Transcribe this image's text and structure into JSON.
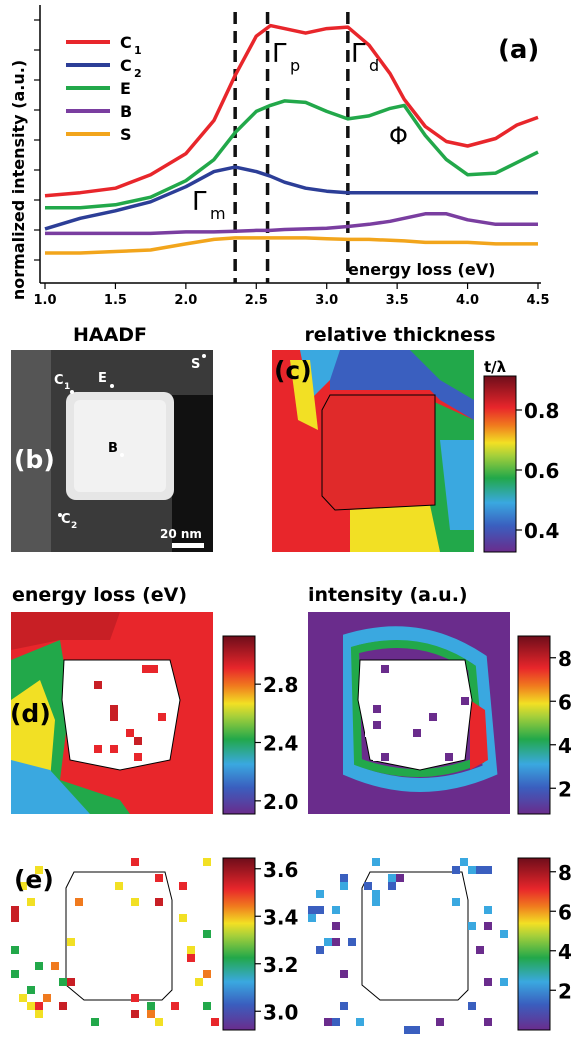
{
  "panel_a": {
    "label": "(a)",
    "ylabel": "normalized intensity (a.u.)",
    "xlabel": "energy loss (eV)",
    "xticks": [
      "1.0",
      "1.5",
      "2.0",
      "2.5",
      "3.0",
      "3.5",
      "4.0",
      "4.5"
    ],
    "legend": [
      {
        "key": "C",
        "sub": "1",
        "color": "#e8262b"
      },
      {
        "key": "C",
        "sub": "2",
        "color": "#2c3e97"
      },
      {
        "key": "E",
        "sub": "",
        "color": "#22a84a"
      },
      {
        "key": "B",
        "sub": "",
        "color": "#7a3ea0"
      },
      {
        "key": "S",
        "sub": "",
        "color": "#f2a51c"
      }
    ],
    "peaks": [
      {
        "label": "Γ",
        "sub": "m"
      },
      {
        "label": "Γ",
        "sub": "p"
      },
      {
        "label": "Γ",
        "sub": "d"
      },
      {
        "label": "Φ",
        "sub": ""
      }
    ]
  },
  "chart_data": {
    "type": "line",
    "x": [
      1.0,
      1.25,
      1.5,
      1.75,
      2.0,
      2.2,
      2.35,
      2.5,
      2.6,
      2.7,
      2.85,
      3.0,
      3.15,
      3.3,
      3.45,
      3.55,
      3.7,
      3.85,
      4.0,
      4.2,
      4.35,
      4.5
    ],
    "xlim": [
      1.0,
      4.5
    ],
    "xlabel": "energy loss (eV)",
    "ylabel": "normalized intensity (a.u.)",
    "series": [
      {
        "name": "C1",
        "color": "#e8262b",
        "values": [
          1.9,
          2.0,
          2.15,
          2.6,
          3.3,
          4.4,
          5.9,
          7.2,
          7.55,
          7.45,
          7.3,
          7.45,
          7.5,
          6.9,
          5.95,
          5.1,
          4.2,
          3.7,
          3.55,
          3.8,
          4.25,
          4.5
        ]
      },
      {
        "name": "C2",
        "color": "#2c3e97",
        "values": [
          0.8,
          1.15,
          1.4,
          1.7,
          2.2,
          2.7,
          2.85,
          2.7,
          2.55,
          2.35,
          2.15,
          2.05,
          2.0,
          2.0,
          2.0,
          2.0,
          2.0,
          2.0,
          2.0,
          2.0,
          2.0,
          2.0
        ]
      },
      {
        "name": "E",
        "color": "#22a84a",
        "values": [
          1.5,
          1.5,
          1.6,
          1.85,
          2.4,
          3.1,
          4.0,
          4.7,
          4.9,
          5.05,
          5.0,
          4.7,
          4.45,
          4.55,
          4.8,
          4.9,
          3.9,
          3.1,
          2.6,
          2.65,
          3.0,
          3.35
        ]
      },
      {
        "name": "B",
        "color": "#7a3ea0",
        "values": [
          0.65,
          0.65,
          0.65,
          0.65,
          0.7,
          0.7,
          0.72,
          0.75,
          0.75,
          0.78,
          0.8,
          0.82,
          0.88,
          0.95,
          1.05,
          1.15,
          1.3,
          1.3,
          1.1,
          0.95,
          0.95,
          0.95
        ]
      },
      {
        "name": "S",
        "color": "#f2a51c",
        "values": [
          0.0,
          0.0,
          0.05,
          0.1,
          0.3,
          0.45,
          0.5,
          0.5,
          0.5,
          0.5,
          0.5,
          0.47,
          0.45,
          0.45,
          0.42,
          0.4,
          0.35,
          0.35,
          0.35,
          0.3,
          0.3,
          0.3
        ]
      }
    ],
    "vlines": [
      2.35,
      2.58,
      3.15
    ],
    "ylim": [
      -0.3,
      8.0
    ]
  },
  "panel_b": {
    "title": "HAADF",
    "label": "(b)",
    "points": [
      "C",
      "E",
      "B",
      "S",
      "C"
    ],
    "point_subs": [
      "1",
      "",
      "",
      "",
      "2"
    ],
    "scalebar": "20 nm"
  },
  "panel_c": {
    "title": "relative thickness",
    "label": "(c)",
    "cb_title": "t/λ",
    "cb_ticks": [
      "0.8",
      "0.6",
      "0.4"
    ]
  },
  "panel_d": {
    "title_left": "energy loss (eV)",
    "title_right": "intensity (a.u.)",
    "label": "(d)",
    "cb_left": [
      "2.8",
      "2.4",
      "2.0"
    ],
    "cb_right": [
      "8",
      "6",
      "4",
      "2"
    ]
  },
  "panel_e": {
    "label": "(e)",
    "cb_left": [
      "3.6",
      "3.4",
      "3.2",
      "3.0"
    ],
    "cb_right": [
      "8",
      "6",
      "4",
      "2"
    ]
  },
  "colors": {
    "jet_top": "#8b0a1a",
    "jet_red": "#e8262b",
    "jet_yellow": "#f2e024",
    "jet_green": "#22a84a",
    "jet_blue": "#3aa8e0",
    "jet_purple": "#5b2b86"
  }
}
